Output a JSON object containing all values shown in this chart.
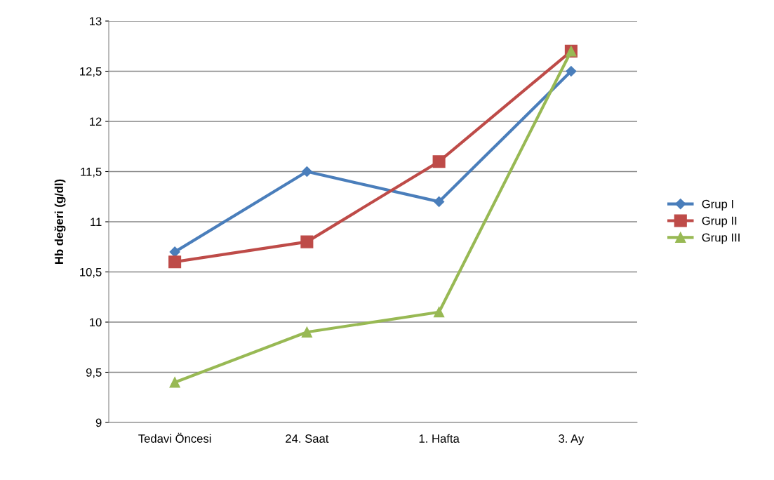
{
  "chart_data": {
    "type": "line",
    "ylabel": "Hb değeri (g/dl)",
    "categories": [
      "Tedavi Öncesi",
      "24. Saat",
      "1. Hafta",
      "3. Ay"
    ],
    "series": [
      {
        "name": "Grup I",
        "color": "#4a7ebb",
        "marker": "diamond",
        "values": [
          10.7,
          11.5,
          11.2,
          12.5
        ]
      },
      {
        "name": "Grup II",
        "color": "#be4b48",
        "marker": "square",
        "values": [
          10.6,
          10.8,
          11.6,
          12.7
        ]
      },
      {
        "name": "Grup III",
        "color": "#98b954",
        "marker": "triangle",
        "values": [
          9.4,
          9.9,
          10.1,
          12.7
        ]
      }
    ],
    "ylim": [
      9,
      13
    ],
    "yticks": [
      9,
      {
        "value": 9.5,
        "label": "9,5"
      },
      10,
      {
        "value": 10.5,
        "label": "10,5"
      },
      11,
      {
        "value": 11.5,
        "label": "11,5"
      },
      12,
      {
        "value": 12.5,
        "label": "12,5"
      },
      13
    ],
    "grid": "y",
    "legend": "right",
    "line_style": "solid"
  }
}
